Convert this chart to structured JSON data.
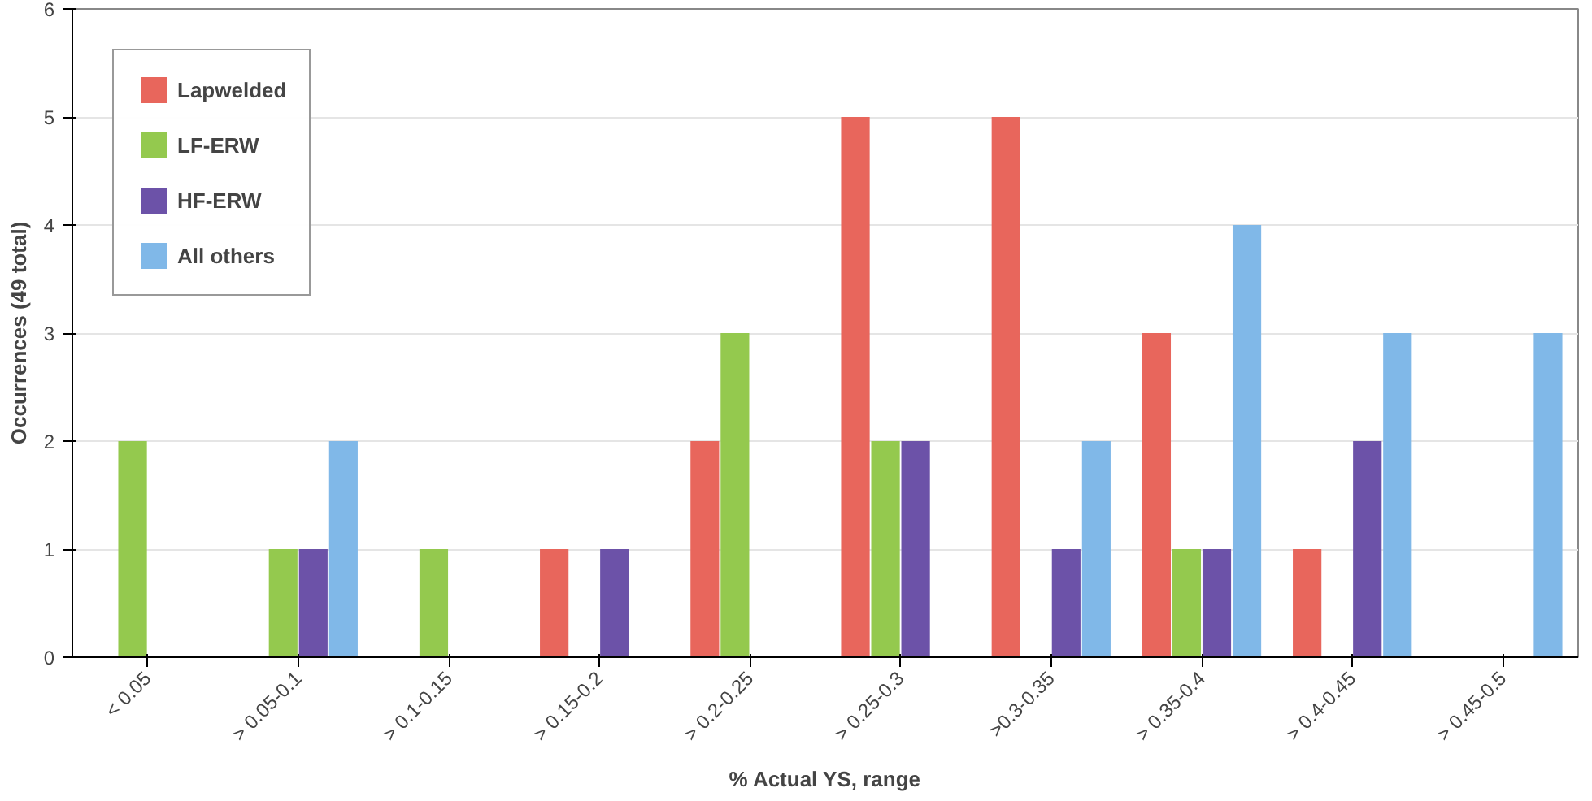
{
  "chart_data": {
    "type": "bar",
    "xlabel": "% Actual YS, range",
    "ylabel": "Occurrences (49 total)",
    "categories": [
      "< 0.05",
      "> 0.05-0.1",
      "> 0.1-0.15",
      "> 0.15-0.2",
      "> 0.2-0.25",
      "> 0.25-0.3",
      ">0.3-0.35",
      "> 0.35-0.4",
      "> 0.4-0.45",
      "> 0.45-0.5"
    ],
    "series": [
      {
        "name": "Lapwelded",
        "color": "#e8665c",
        "values": [
          0,
          0,
          0,
          1,
          2,
          5,
          5,
          3,
          1,
          0
        ]
      },
      {
        "name": "LF-ERW",
        "color": "#94c94e",
        "values": [
          2,
          1,
          1,
          0,
          3,
          2,
          0,
          1,
          0,
          0
        ]
      },
      {
        "name": "HF-ERW",
        "color": "#6c52a8",
        "values": [
          0,
          1,
          0,
          1,
          0,
          2,
          1,
          1,
          2,
          0
        ]
      },
      {
        "name": "All others",
        "color": "#80b8e8",
        "values": [
          0,
          2,
          0,
          0,
          0,
          0,
          2,
          4,
          3,
          3
        ]
      }
    ],
    "ylim": [
      0,
      6
    ],
    "yticks": [
      0,
      1,
      2,
      3,
      4,
      5,
      6
    ],
    "grid": "y",
    "legend": "top left"
  }
}
